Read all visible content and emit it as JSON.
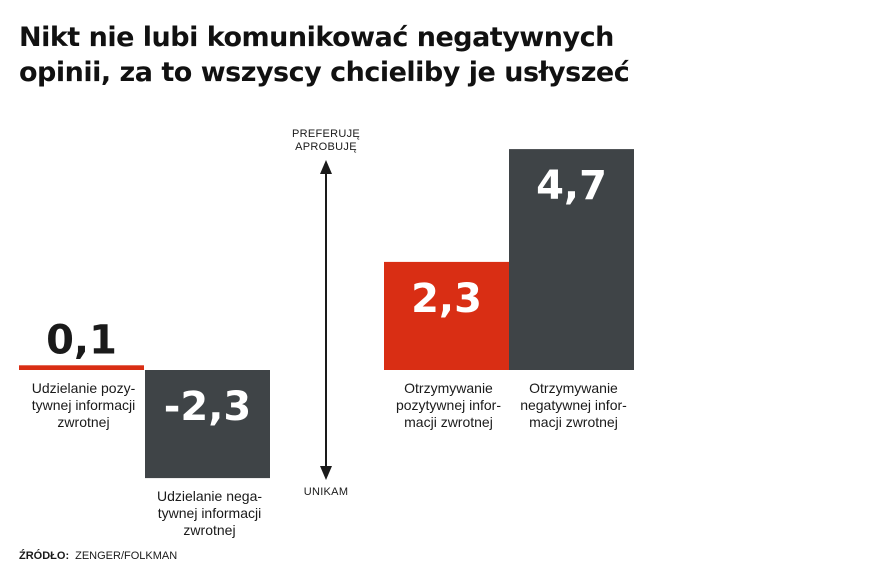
{
  "title_lines": [
    "Nikt nie lubi komunikować negatywnych",
    "opinii, za to wszyscy chcieliby je usłyszeć"
  ],
  "axis": {
    "top_label_lines": [
      "PREFERUJĘ",
      "APROBUJĘ"
    ],
    "bottom_label": "UNIKAM"
  },
  "source": {
    "label": "ŹRÓDŁO:",
    "text": "ZENGER/FOLKMAN"
  },
  "colors": {
    "red": "#d92e14",
    "gray": "#3f4447",
    "text": "#1a1a1a"
  },
  "chart_data": {
    "type": "bar",
    "categories": [
      "Udzielanie pozytywnej informacji zwrotnej",
      "Udzielanie negatywnej informacji zwrotnej",
      "Otrzymywanie pozytywnej informacji zwrotnej",
      "Otrzymywanie negatywnej informacji zwrotnej"
    ],
    "values": [
      0.1,
      -2.3,
      2.3,
      4.7
    ],
    "value_labels": [
      "0,1",
      "-2,3",
      "2,3",
      "4,7"
    ],
    "colors": [
      "#d92e14",
      "#3f4447",
      "#d92e14",
      "#3f4447"
    ],
    "category_label_lines": [
      [
        "Udzielanie pozy-",
        "tywnej informacji",
        "zwrotnej"
      ],
      [
        "Udzielanie nega-",
        "tywnej informacji",
        "zwrotnej"
      ],
      [
        "Otrzymywanie",
        "pozytywnej infor-",
        "macji zwrotnej"
      ],
      [
        "Otrzymywanie",
        "negatywnej infor-",
        "macji zwrotnej"
      ]
    ],
    "title": "Nikt nie lubi komunikować negatywnych opinii, za to wszyscy chcieliby je usłyszeć",
    "ylabel": "",
    "grid": false,
    "legend": "none"
  }
}
